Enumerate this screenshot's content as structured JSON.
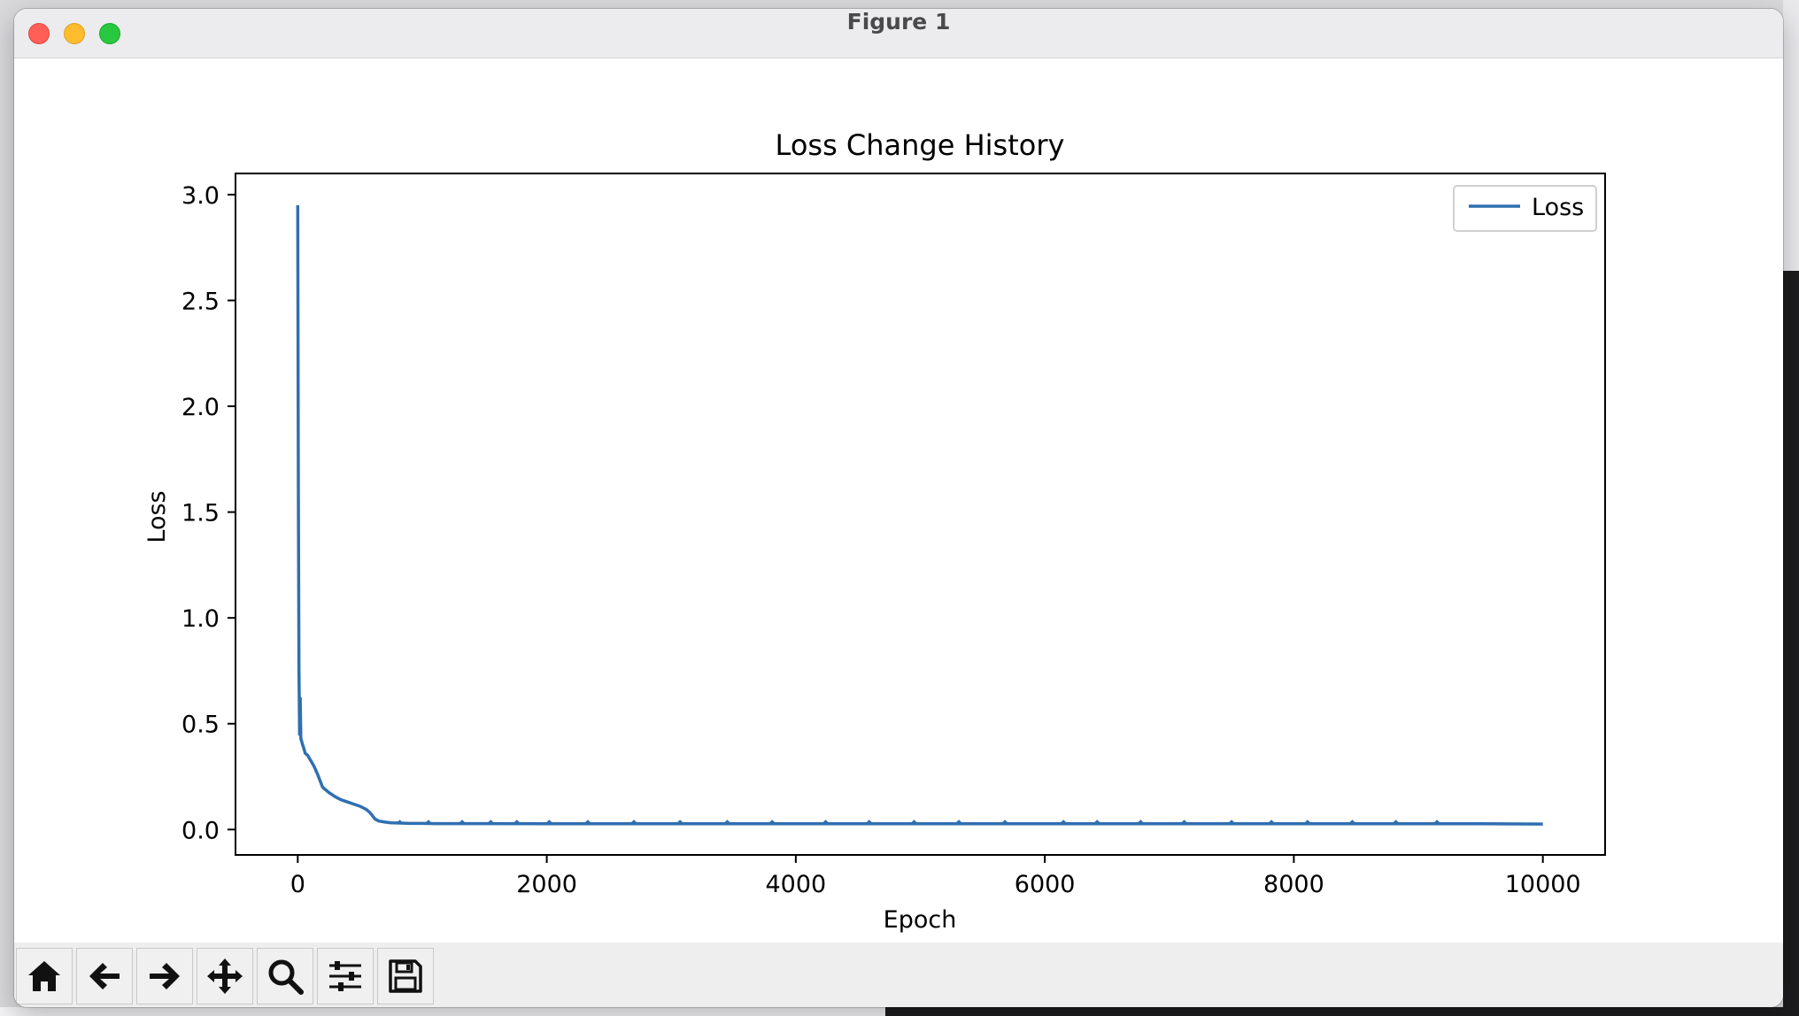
{
  "window": {
    "title": "Figure 1"
  },
  "toolbar": {
    "buttons": [
      {
        "name": "home-icon",
        "tooltip": ""
      },
      {
        "name": "back-arrow-icon",
        "tooltip": ""
      },
      {
        "name": "forward-arrow-icon",
        "tooltip": ""
      },
      {
        "name": "pan-icon",
        "tooltip": ""
      },
      {
        "name": "zoom-icon",
        "tooltip": ""
      },
      {
        "name": "configure-subplots-icon",
        "tooltip": ""
      },
      {
        "name": "save-icon",
        "tooltip": ""
      }
    ]
  },
  "colors": {
    "line": "#2f6fb0",
    "axis": "#000000"
  },
  "chart_data": {
    "type": "line",
    "title": "Loss Change History",
    "xlabel": "Epoch",
    "ylabel": "Loss",
    "xlim": [
      -500,
      10500
    ],
    "ylim": [
      -0.12,
      3.1
    ],
    "xticks": [
      0,
      2000,
      4000,
      6000,
      8000,
      10000
    ],
    "xtick_labels": [
      "0",
      "2000",
      "4000",
      "6000",
      "8000",
      "10000"
    ],
    "yticks": [
      0.0,
      0.5,
      1.0,
      1.5,
      2.0,
      2.5,
      3.0
    ],
    "ytick_labels": [
      "0.0",
      "0.5",
      "1.0",
      "1.5",
      "2.0",
      "2.5",
      "3.0"
    ],
    "grid": false,
    "legend": {
      "position": "upper-right",
      "entries": [
        "Loss"
      ]
    },
    "series": [
      {
        "name": "Loss",
        "x": [
          0,
          5,
          10,
          15,
          20,
          25,
          30,
          40,
          50,
          60,
          80,
          100,
          130,
          160,
          200,
          250,
          300,
          350,
          400,
          450,
          500,
          550,
          580,
          620,
          650,
          700,
          750,
          800,
          850,
          900,
          1000,
          1100,
          1200,
          1500,
          2000,
          2500,
          3000,
          3500,
          4000,
          4500,
          5000,
          5500,
          6000,
          6500,
          7000,
          7500,
          8000,
          8500,
          9000,
          9500,
          10000
        ],
        "values": [
          2.95,
          1.6,
          0.75,
          0.45,
          0.62,
          0.43,
          0.42,
          0.4,
          0.38,
          0.36,
          0.35,
          0.33,
          0.3,
          0.26,
          0.2,
          0.175,
          0.155,
          0.14,
          0.13,
          0.12,
          0.11,
          0.095,
          0.08,
          0.05,
          0.04,
          0.035,
          0.032,
          0.031,
          0.03,
          0.029,
          0.029,
          0.028,
          0.028,
          0.028,
          0.027,
          0.027,
          0.027,
          0.027,
          0.027,
          0.027,
          0.027,
          0.027,
          0.027,
          0.027,
          0.027,
          0.027,
          0.027,
          0.027,
          0.027,
          0.027,
          0.026
        ]
      }
    ],
    "spike_epochs": [
      820,
      1050,
      1320,
      1550,
      1760,
      2020,
      2330,
      2700,
      3070,
      3450,
      3810,
      4240,
      4590,
      4950,
      5310,
      5680,
      6150,
      6420,
      6770,
      7120,
      7500,
      7820,
      8110,
      8470,
      8820,
      9150
    ],
    "spike_height": 0.012
  }
}
